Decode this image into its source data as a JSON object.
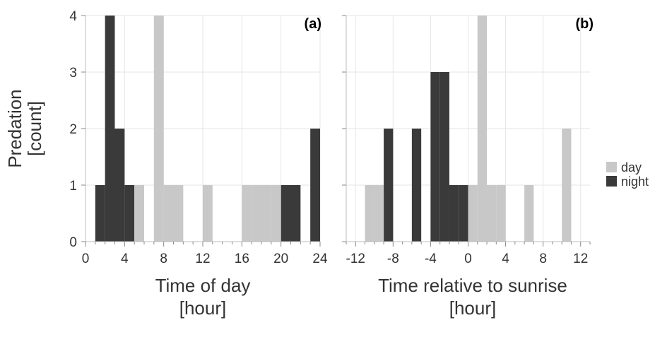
{
  "colors": {
    "day": "#c8c8c8",
    "night": "#3a3a3a",
    "grid": "#e6e6e6",
    "axis": "#bdbdbd"
  },
  "y_axis": {
    "label": "Predation",
    "label_unit": "[count]"
  },
  "legend": {
    "items": [
      {
        "key": "day",
        "label": "day"
      },
      {
        "key": "night",
        "label": "night"
      }
    ]
  },
  "chart_data": [
    {
      "type": "bar",
      "panel_label": "(a)",
      "xlabel": "Time of day",
      "xlabel_unit": "[hour]",
      "xlim": [
        0,
        24
      ],
      "ylim": [
        0,
        4
      ],
      "xticks": [
        0,
        4,
        8,
        12,
        16,
        20,
        24
      ],
      "yticks": [
        0,
        1,
        2,
        3,
        4
      ],
      "bin_width": 1,
      "grid": true,
      "series": [
        {
          "name": "night",
          "x": [
            1,
            2,
            3,
            4,
            20,
            21,
            23
          ],
          "values": [
            1,
            4,
            2,
            1,
            1,
            1,
            2
          ]
        },
        {
          "name": "day",
          "x": [
            5,
            7,
            8,
            9,
            12,
            16,
            17,
            18,
            19
          ],
          "values": [
            1,
            4,
            1,
            1,
            1,
            1,
            1,
            1,
            1
          ]
        }
      ]
    },
    {
      "type": "bar",
      "panel_label": "(b)",
      "xlabel": "Time relative to sunrise",
      "xlabel_unit": "[hour]",
      "xlim": [
        -13,
        13
      ],
      "ylim": [
        0,
        4
      ],
      "xticks": [
        -12,
        -8,
        -4,
        0,
        4,
        8,
        12
      ],
      "yticks": [
        0,
        1,
        2,
        3,
        4
      ],
      "bin_width": 1,
      "grid": true,
      "series": [
        {
          "name": "night",
          "x": [
            -9,
            -6,
            -4,
            -3,
            -2,
            -1
          ],
          "values": [
            2,
            2,
            3,
            3,
            1,
            1
          ]
        },
        {
          "name": "day",
          "x": [
            -11,
            -10,
            0,
            1,
            2,
            3,
            6,
            10
          ],
          "values": [
            1,
            1,
            1,
            4,
            1,
            1,
            1,
            2
          ]
        }
      ]
    }
  ]
}
